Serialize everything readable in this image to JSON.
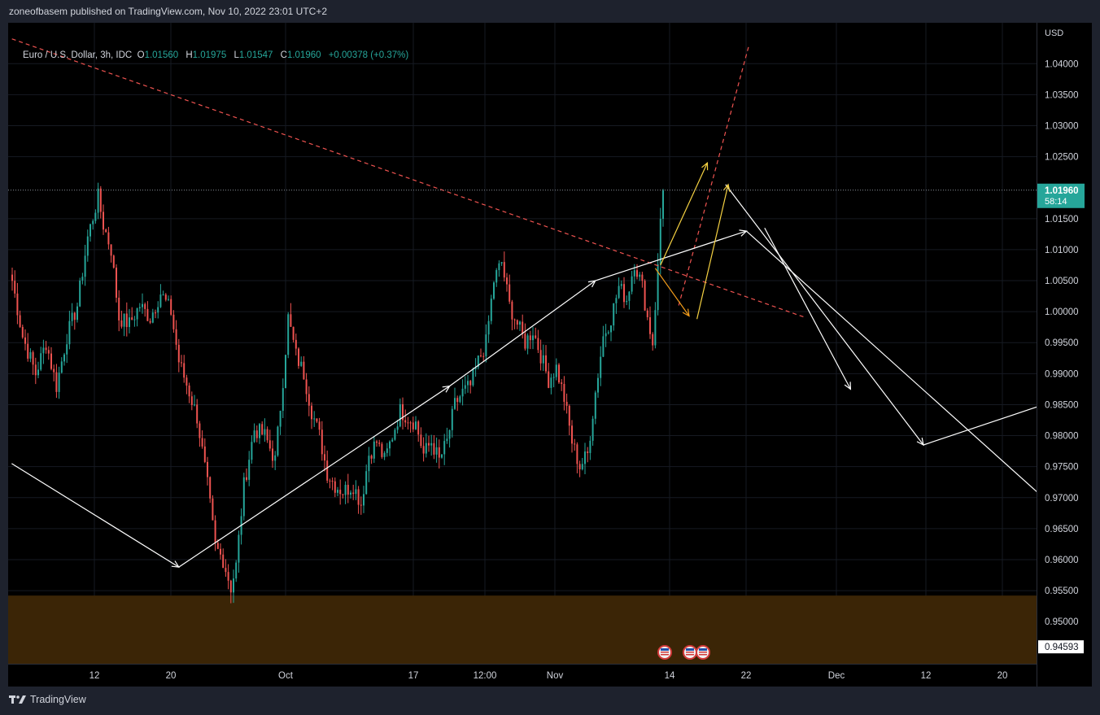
{
  "header": {
    "published": "zoneofbasem published on TradingView.com, Nov 10, 2022 23:01 UTC+2"
  },
  "legend": {
    "symbol": "Euro / U.S. Dollar, 3h, IDC",
    "o_label": "O",
    "o_value": "1.01560",
    "h_label": "H",
    "h_value": "1.01975",
    "l_label": "L",
    "l_value": "1.01547",
    "c_label": "C",
    "c_value": "1.01960",
    "change": "+0.00378 (+0.37%)"
  },
  "footer": {
    "brand": "TradingView",
    "logo_icon": "tradingview-logo-icon"
  },
  "colors": {
    "up": "#26a69a",
    "down": "#ef5350",
    "zone": "#3b2506",
    "trend_red": "#ef5350",
    "arrow_yellow": "#f5d142",
    "arrow_orange": "#f59e1b",
    "last_price": "#26a69a"
  },
  "chart_data": {
    "type": "candlestick",
    "title": "",
    "price_axis_label": "USD",
    "ylim": [
      0.9432,
      1.0466
    ],
    "y_ticks": [
      "1.04000",
      "1.03500",
      "1.03000",
      "1.02500",
      "1.01500",
      "1.01000",
      "1.00500",
      "1.00000",
      "0.99500",
      "0.99000",
      "0.98500",
      "0.98000",
      "0.97500",
      "0.97000",
      "0.96500",
      "0.96000",
      "0.95500",
      "0.95000"
    ],
    "x_ticks": [
      "12",
      "20",
      "Oct",
      "17",
      "12:00",
      "Nov",
      "14",
      "22",
      "Dec",
      "12",
      "20"
    ],
    "last_price": {
      "value": "1.01960",
      "countdown": "58:14"
    },
    "crosshair_price": "0.94593",
    "support_zone": [
      0.9459,
      0.9542
    ],
    "events": [
      "us-flag-icon",
      "us-flag-icon",
      "us-flag-icon"
    ],
    "price_anchors": [
      {
        "x": 0,
        "y": 1.005
      },
      {
        "x": 4,
        "y": 0.996
      },
      {
        "x": 9,
        "y": 0.99
      },
      {
        "x": 13,
        "y": 0.995
      },
      {
        "x": 17,
        "y": 0.988
      },
      {
        "x": 21,
        "y": 0.996
      },
      {
        "x": 25,
        "y": 1.001
      },
      {
        "x": 29,
        "y": 1.012
      },
      {
        "x": 33,
        "y": 1.0185
      },
      {
        "x": 35,
        "y": 1.014
      },
      {
        "x": 38,
        "y": 1.01
      },
      {
        "x": 41,
        "y": 0.999
      },
      {
        "x": 45,
        "y": 0.998
      },
      {
        "x": 49,
        "y": 1.001
      },
      {
        "x": 53,
        "y": 0.999
      },
      {
        "x": 57,
        "y": 1.003
      },
      {
        "x": 61,
        "y": 1.0
      },
      {
        "x": 64,
        "y": 0.992
      },
      {
        "x": 68,
        "y": 0.987
      },
      {
        "x": 71,
        "y": 0.983
      },
      {
        "x": 75,
        "y": 0.972
      },
      {
        "x": 78,
        "y": 0.962
      },
      {
        "x": 81,
        "y": 0.96
      },
      {
        "x": 84,
        "y": 0.9555
      },
      {
        "x": 86,
        "y": 0.959
      },
      {
        "x": 89,
        "y": 0.972
      },
      {
        "x": 93,
        "y": 0.981
      },
      {
        "x": 97,
        "y": 0.98
      },
      {
        "x": 101,
        "y": 0.976
      },
      {
        "x": 104,
        "y": 0.989
      },
      {
        "x": 106,
        "y": 0.999
      },
      {
        "x": 109,
        "y": 0.993
      },
      {
        "x": 112,
        "y": 0.99
      },
      {
        "x": 115,
        "y": 0.984
      },
      {
        "x": 118,
        "y": 0.98
      },
      {
        "x": 121,
        "y": 0.974
      },
      {
        "x": 124,
        "y": 0.972
      },
      {
        "x": 127,
        "y": 0.971
      },
      {
        "x": 131,
        "y": 0.972
      },
      {
        "x": 134,
        "y": 0.969
      },
      {
        "x": 137,
        "y": 0.977
      },
      {
        "x": 140,
        "y": 0.979
      },
      {
        "x": 143,
        "y": 0.976
      },
      {
        "x": 146,
        "y": 0.98
      },
      {
        "x": 149,
        "y": 0.984
      },
      {
        "x": 152,
        "y": 0.983
      },
      {
        "x": 155,
        "y": 0.982
      },
      {
        "x": 158,
        "y": 0.977
      },
      {
        "x": 161,
        "y": 0.979
      },
      {
        "x": 164,
        "y": 0.976
      },
      {
        "x": 167,
        "y": 0.979
      },
      {
        "x": 170,
        "y": 0.985
      },
      {
        "x": 173,
        "y": 0.987
      },
      {
        "x": 176,
        "y": 0.988
      },
      {
        "x": 179,
        "y": 0.992
      },
      {
        "x": 182,
        "y": 0.995
      },
      {
        "x": 185,
        "y": 1.005
      },
      {
        "x": 188,
        "y": 1.008
      },
      {
        "x": 191,
        "y": 1.001
      },
      {
        "x": 194,
        "y": 0.998
      },
      {
        "x": 197,
        "y": 0.995
      },
      {
        "x": 200,
        "y": 0.997
      },
      {
        "x": 203,
        "y": 0.993
      },
      {
        "x": 206,
        "y": 0.989
      },
      {
        "x": 209,
        "y": 0.991
      },
      {
        "x": 212,
        "y": 0.986
      },
      {
        "x": 215,
        "y": 0.979
      },
      {
        "x": 218,
        "y": 0.975
      },
      {
        "x": 221,
        "y": 0.977
      },
      {
        "x": 224,
        "y": 0.987
      },
      {
        "x": 227,
        "y": 0.996
      },
      {
        "x": 230,
        "y": 0.999
      },
      {
        "x": 233,
        "y": 1.004
      },
      {
        "x": 236,
        "y": 1.002
      },
      {
        "x": 239,
        "y": 1.008
      },
      {
        "x": 242,
        "y": 1.004
      },
      {
        "x": 244,
        "y": 0.999
      },
      {
        "x": 246,
        "y": 0.995
      },
      {
        "x": 248,
        "y": 1.007
      },
      {
        "x": 249,
        "y": 1.015
      },
      {
        "x": 250,
        "y": 1.0196
      }
    ],
    "drawings": {
      "red_trendline": [
        [
          -0.1,
          1.044
        ],
        [
          305,
          0.999
        ]
      ],
      "red_projection": [
        [
          256,
          1.001
        ],
        [
          283,
          1.043
        ]
      ],
      "white_path_1": [
        [
          -0.2,
          0.9755
        ],
        [
          64,
          0.9588
        ],
        [
          168,
          0.988
        ],
        [
          224,
          1.005
        ],
        [
          282,
          1.013
        ]
      ],
      "white_path_2": [
        [
          274,
          1.0205
        ],
        [
          350,
          0.9785
        ],
        [
          409,
          0.9868
        ]
      ],
      "white_cross_line": [
        [
          282,
          1.013
        ],
        [
          408,
          0.9655
        ]
      ],
      "white_arrow_down": [
        [
          289,
          1.0135
        ],
        [
          322,
          0.9875
        ]
      ],
      "yellow_arrow_1": [
        [
          249,
          1.0075
        ],
        [
          267,
          1.024
        ]
      ],
      "yellow_arrow_2": [
        [
          263,
          0.9988
        ],
        [
          275,
          1.0205
        ]
      ],
      "orange_arrow": [
        [
          247,
          1.007
        ],
        [
          260,
          0.9993
        ]
      ]
    }
  }
}
